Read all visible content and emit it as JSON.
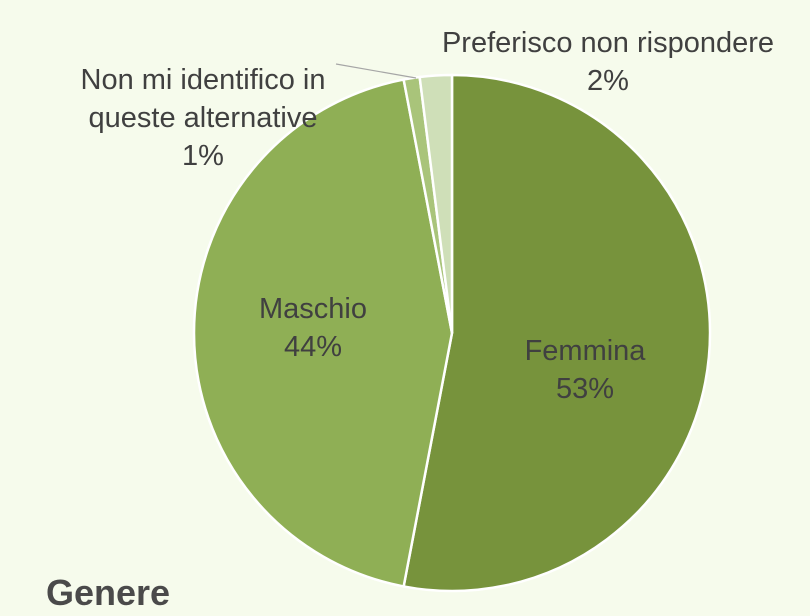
{
  "chart_data": {
    "type": "pie",
    "title": "Genere",
    "categories": [
      "Femmina",
      "Maschio",
      "Non mi identifico in queste alternative",
      "Preferisco non rispondere"
    ],
    "values": [
      53,
      44,
      1,
      2
    ],
    "value_labels": [
      "53%",
      "44%",
      "1%",
      "2%"
    ],
    "colors": [
      "#77933c",
      "#8faf55",
      "#a9c47a",
      "#cfdfb8"
    ]
  }
}
